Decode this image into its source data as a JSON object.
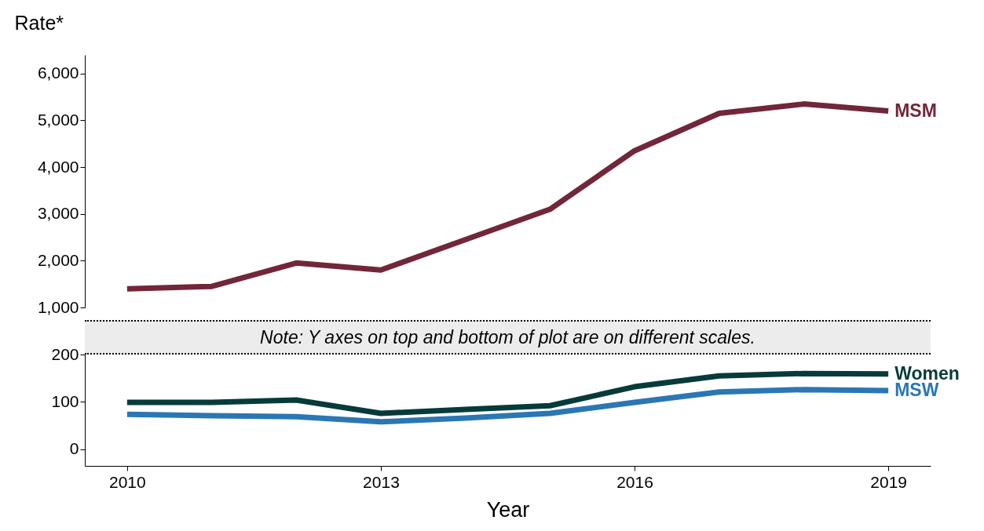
{
  "chart_data": [
    {
      "type": "line",
      "ylabel": "Rate*",
      "x": [
        2010,
        2011,
        2012,
        2013,
        2014,
        2015,
        2016,
        2017,
        2018,
        2019
      ],
      "ylim": [
        1000,
        6400
      ],
      "yticks": [
        {
          "value": 1000,
          "label": "1,000"
        },
        {
          "value": 2000,
          "label": "2,000"
        },
        {
          "value": 3000,
          "label": "3,000"
        },
        {
          "value": 4000,
          "label": "4,000"
        },
        {
          "value": 5000,
          "label": "5,000"
        },
        {
          "value": 6000,
          "label": "6,000"
        }
      ],
      "tick_labels": "y",
      "grid": false,
      "legend": false,
      "series": [
        {
          "name": "MSM",
          "color": "#72263a",
          "values": [
            1400,
            1450,
            1950,
            1800,
            2450,
            3100,
            4350,
            5150,
            5350,
            5200
          ]
        }
      ]
    },
    {
      "type": "line",
      "xlabel": "Year",
      "x": [
        2010,
        2011,
        2012,
        2013,
        2014,
        2015,
        2016,
        2017,
        2018,
        2019
      ],
      "xlim": [
        2009.5,
        2019.5
      ],
      "xticks": [
        2010,
        2013,
        2016,
        2019
      ],
      "ylim": [
        -35,
        200
      ],
      "yticks": [
        0,
        100,
        200
      ],
      "grid": false,
      "legend": false,
      "annotations": [
        "Note: Y axes on top and bottom of plot are on different scales."
      ],
      "series": [
        {
          "name": "Women",
          "color": "#073b3a",
          "values": [
            99,
            99,
            104,
            76,
            84,
            92,
            132,
            155,
            160,
            159
          ]
        },
        {
          "name": "MSW",
          "color": "#2a77b4",
          "values": [
            74,
            71,
            69,
            58,
            66,
            76,
            99,
            121,
            126,
            124
          ]
        }
      ]
    }
  ]
}
